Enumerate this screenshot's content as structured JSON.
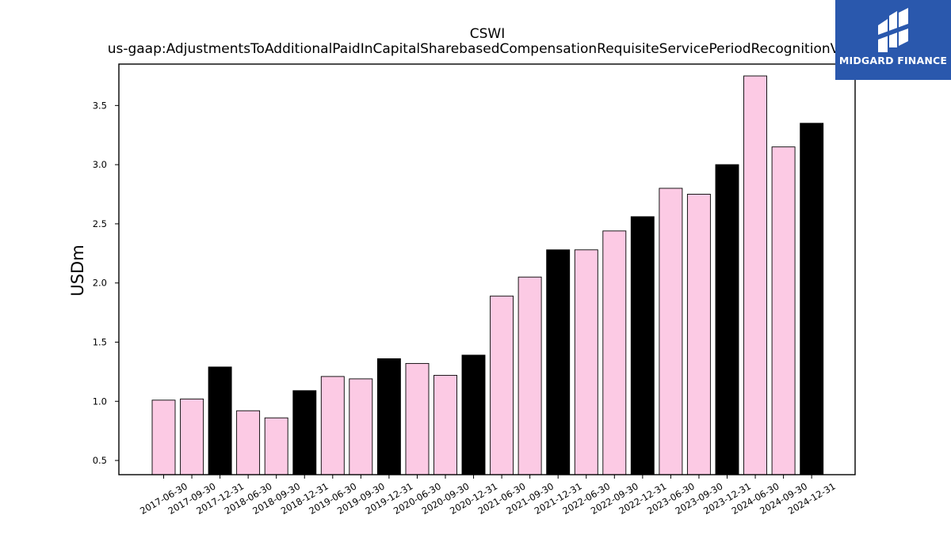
{
  "chart_data": {
    "type": "bar",
    "title": "CSWI",
    "subtitle": "us-gaap:AdjustmentsToAdditionalPaidInCapitalSharebasedCompensationRequisiteServicePeriodRecognitionValue",
    "ylabel": "USDm",
    "xlabel": "",
    "ylim": [
      0.38,
      3.85
    ],
    "yticks": [
      0.5,
      1.0,
      1.5,
      2.0,
      2.5,
      3.0,
      3.5
    ],
    "ytick_labels": [
      "0.5",
      "1.0",
      "1.5",
      "2.0",
      "2.5",
      "3.0",
      "3.5"
    ],
    "categories": [
      "2017-06-30",
      "2017-09-30",
      "2017-12-31",
      "2018-06-30",
      "2018-09-30",
      "2018-12-31",
      "2019-06-30",
      "2019-09-30",
      "2019-12-31",
      "2020-06-30",
      "2020-09-30",
      "2020-12-31",
      "2021-06-30",
      "2021-09-30",
      "2021-12-31",
      "2022-06-30",
      "2022-09-30",
      "2022-12-31",
      "2023-06-30",
      "2023-09-30",
      "2023-12-31",
      "2024-06-30",
      "2024-09-30",
      "2024-12-31"
    ],
    "values": [
      1.01,
      1.02,
      1.29,
      0.92,
      0.86,
      1.09,
      1.21,
      1.19,
      1.36,
      1.32,
      1.22,
      1.39,
      1.89,
      2.05,
      2.28,
      2.28,
      2.44,
      2.56,
      2.8,
      2.75,
      3.0,
      3.75,
      3.15,
      3.35
    ],
    "bar_colors": [
      "#fccae4",
      "#fccae4",
      "#000000",
      "#fccae4",
      "#fccae4",
      "#000000",
      "#fccae4",
      "#fccae4",
      "#000000",
      "#fccae4",
      "#fccae4",
      "#000000",
      "#fccae4",
      "#fccae4",
      "#000000",
      "#fccae4",
      "#fccae4",
      "#000000",
      "#fccae4",
      "#fccae4",
      "#000000",
      "#fccae4",
      "#fccae4",
      "#000000"
    ],
    "grid": false,
    "legend": "none"
  },
  "logo": {
    "text": "MIDGARD FINANCE",
    "background": "#2a58ad"
  }
}
